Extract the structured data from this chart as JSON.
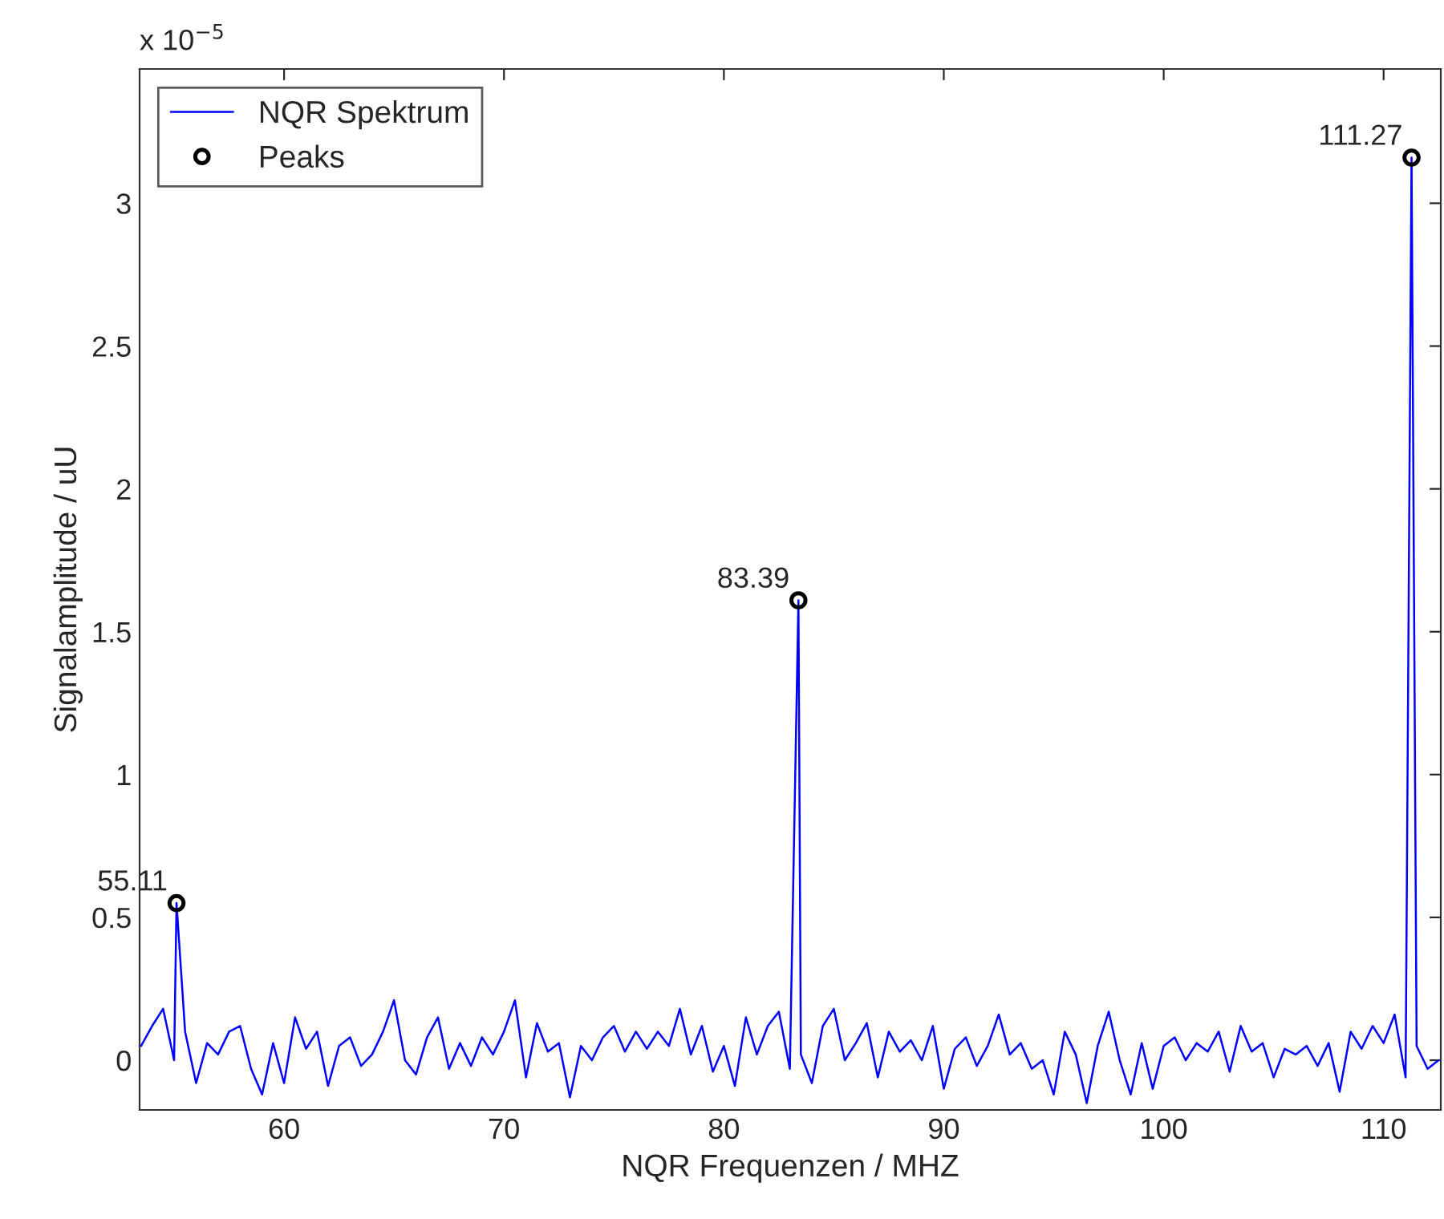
{
  "chart_data": {
    "type": "line",
    "xlabel": "NQR Frequenzen / MHZ",
    "ylabel": "Signalamplitude / uU",
    "annotations": [
      "x 10$^{−5}$",
      {
        "text": "55.11",
        "x": 55.11,
        "y": 0.55
      },
      {
        "text": "83.39",
        "x": 83.39,
        "y": 1.61
      },
      {
        "text": "111.27",
        "x": 111.27,
        "y": 3.16
      }
    ],
    "xlim": [
      53.43,
      112.6
    ],
    "xticks": [
      60,
      70,
      80,
      90,
      100,
      110
    ],
    "ylim": [
      -0.174,
      3.47
    ],
    "yticks": [
      0,
      0.5,
      1,
      1.5,
      2,
      2.5,
      3
    ],
    "grid": false,
    "legend": "top left",
    "series": [
      {
        "name": "NQR Spektrum",
        "color": "#0000ff",
        "line_style": "solid",
        "x": [
          53.5,
          54,
          54.5,
          55,
          55.11,
          55.5,
          56,
          56.5,
          57,
          57.5,
          58,
          58.5,
          59,
          59.5,
          60,
          60.5,
          61,
          61.5,
          62,
          62.5,
          63,
          63.5,
          64,
          64.5,
          65,
          65.5,
          66,
          66.5,
          67,
          67.5,
          68,
          68.5,
          69,
          69.5,
          70,
          70.5,
          71,
          71.5,
          72,
          72.5,
          73,
          73.5,
          74,
          74.5,
          75,
          75.5,
          76,
          76.5,
          77,
          77.5,
          78,
          78.5,
          79,
          79.5,
          80,
          80.5,
          81,
          81.5,
          82,
          82.5,
          83,
          83.39,
          83.5,
          84,
          84.5,
          85,
          85.5,
          86,
          86.5,
          87,
          87.5,
          88,
          88.5,
          89,
          89.5,
          90,
          90.5,
          91,
          91.5,
          92,
          92.5,
          93,
          93.5,
          94,
          94.5,
          95,
          95.5,
          96,
          96.5,
          97,
          97.5,
          98,
          98.5,
          99,
          99.5,
          100,
          100.5,
          101,
          101.5,
          102,
          102.5,
          103,
          103.5,
          104,
          104.5,
          105,
          105.5,
          106,
          106.5,
          107,
          107.5,
          108,
          108.5,
          109,
          109.5,
          110,
          110.5,
          111,
          111.27,
          111.5,
          112,
          112.5
        ],
        "values": [
          0.05,
          0.12,
          0.18,
          0.0,
          0.55,
          0.1,
          -0.08,
          0.06,
          0.02,
          0.1,
          0.12,
          -0.03,
          -0.12,
          0.06,
          -0.08,
          0.15,
          0.04,
          0.1,
          -0.09,
          0.05,
          0.08,
          -0.02,
          0.02,
          0.1,
          0.21,
          0.0,
          -0.05,
          0.08,
          0.15,
          -0.03,
          0.06,
          -0.02,
          0.08,
          0.02,
          0.1,
          0.21,
          -0.06,
          0.13,
          0.03,
          0.06,
          -0.13,
          0.05,
          0.0,
          0.08,
          0.12,
          0.03,
          0.1,
          0.04,
          0.1,
          0.05,
          0.18,
          0.02,
          0.12,
          -0.04,
          0.05,
          -0.09,
          0.15,
          0.02,
          0.12,
          0.17,
          -0.03,
          1.61,
          0.02,
          -0.08,
          0.12,
          0.18,
          0.0,
          0.06,
          0.13,
          -0.06,
          0.1,
          0.03,
          0.07,
          0.0,
          0.12,
          -0.1,
          0.04,
          0.08,
          -0.02,
          0.05,
          0.16,
          0.02,
          0.06,
          -0.03,
          0.0,
          -0.12,
          0.1,
          0.02,
          -0.15,
          0.05,
          0.17,
          0.0,
          -0.12,
          0.06,
          -0.1,
          0.05,
          0.08,
          0.0,
          0.06,
          0.03,
          0.1,
          -0.04,
          0.12,
          0.03,
          0.06,
          -0.06,
          0.04,
          0.02,
          0.05,
          -0.02,
          0.06,
          -0.11,
          0.1,
          0.04,
          0.12,
          0.06,
          0.16,
          -0.06,
          3.16,
          0.05,
          -0.03,
          0.0
        ]
      },
      {
        "name": "Peaks",
        "type": "scatter",
        "color": "#000000",
        "marker": "circle",
        "x": [
          55.11,
          83.39,
          111.27
        ],
        "values": [
          0.55,
          1.61,
          3.16
        ]
      }
    ]
  }
}
